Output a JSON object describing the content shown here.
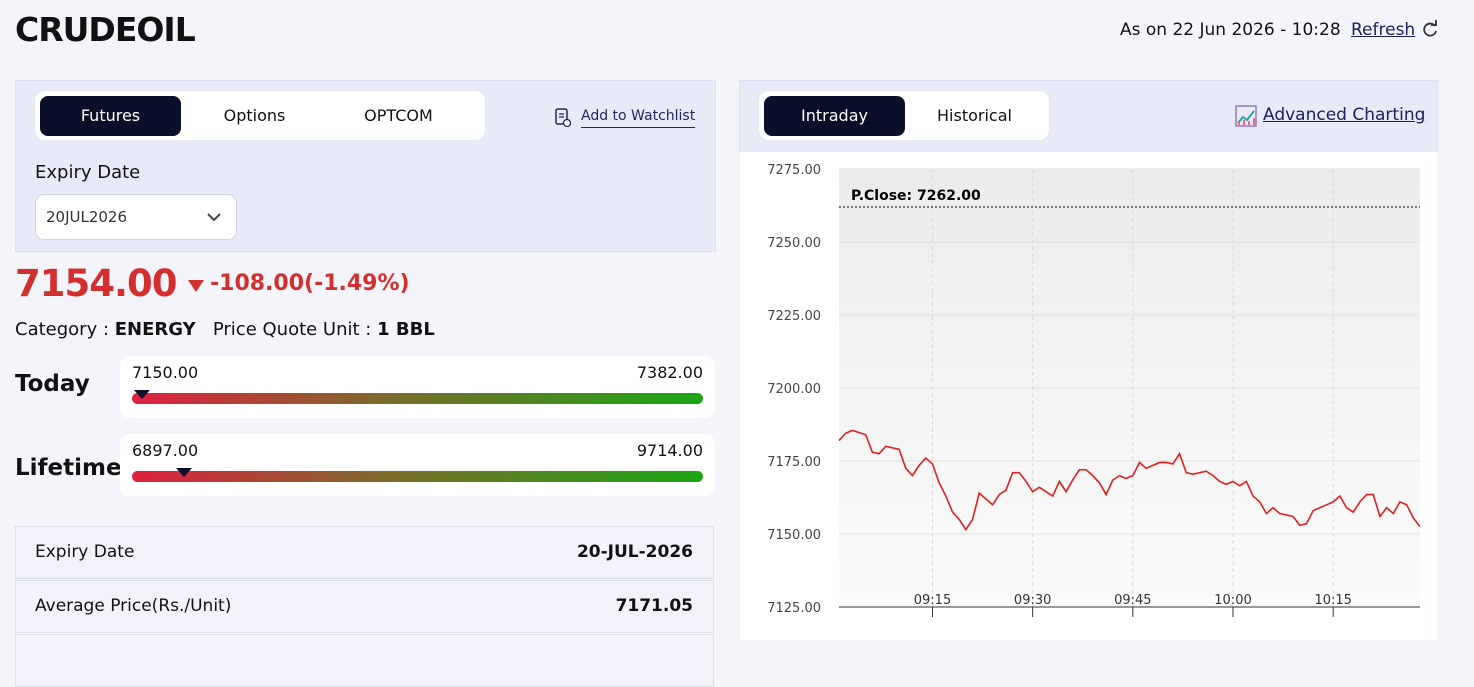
{
  "header": {
    "title": "CRUDEOIL",
    "as_on": "As on 22 Jun 2026 - 10:28",
    "refresh": "Refresh"
  },
  "tabs": [
    "Futures",
    "Options",
    "OPTCOM"
  ],
  "active_tab": 0,
  "watchlist": "Add to Watchlist",
  "expiry": {
    "label": "Expiry Date",
    "value": "20JUL2026"
  },
  "price": "7154.00",
  "change": "-108.00(-1.49%)",
  "category": {
    "label": "Category :",
    "value": "ENERGY",
    "unit_label": "Price Quote Unit :",
    "unit": "1 BBL"
  },
  "ranges": [
    {
      "label": "Today",
      "low": "7150.00",
      "high": "7382.00"
    },
    {
      "label": "Lifetime",
      "low": "6897.00",
      "high": "9714.00"
    }
  ],
  "table": {
    "rows": [
      [
        "Expiry Date",
        "20-JUL-2026"
      ],
      [
        "Average Price(Rs./Unit)",
        "7171.05"
      ]
    ]
  },
  "chart_tabs": [
    "Intraday",
    "Historical"
  ],
  "chart_active_tab": 0,
  "advanced_charting": "Advanced Charting",
  "chart_data": {
    "type": "line",
    "color": "#e02020",
    "x": [
      "09:01",
      "09:02",
      "09:03",
      "09:05",
      "09:06",
      "09:07",
      "09:08",
      "09:10",
      "09:11",
      "09:12",
      "09:13",
      "09:14",
      "09:15",
      "09:16",
      "09:17",
      "09:18",
      "09:19",
      "09:20",
      "09:21",
      "09:22",
      "09:23",
      "09:24",
      "09:25",
      "09:26",
      "09:27",
      "09:28",
      "09:29",
      "09:30",
      "09:31",
      "09:33",
      "09:34",
      "09:35",
      "09:36",
      "09:37",
      "09:38",
      "09:39",
      "09:40",
      "09:41",
      "09:42",
      "09:43",
      "09:44",
      "09:45",
      "09:46",
      "09:47",
      "09:49",
      "09:50",
      "09:51",
      "09:52",
      "09:53",
      "09:54",
      "09:56",
      "09:57",
      "09:58",
      "09:59",
      "10:00",
      "10:01",
      "10:02",
      "10:03",
      "10:04",
      "10:05",
      "10:06",
      "10:07",
      "10:09",
      "10:10",
      "10:11",
      "10:12",
      "10:13",
      "10:14",
      "10:15",
      "10:16",
      "10:17",
      "10:18",
      "10:19",
      "10:20",
      "10:21",
      "10:22",
      "10:23",
      "10:24",
      "10:25",
      "10:26",
      "10:27",
      "10:28"
    ],
    "values": [
      7182,
      7184.5,
      7185.5,
      7184,
      7178,
      7177.5,
      7180,
      7179,
      7172.5,
      7170,
      7173.5,
      7176,
      7174,
      7167.5,
      7163,
      7157.5,
      7155,
      7151.5,
      7155,
      7164,
      7162,
      7160,
      7163.5,
      7165,
      7171,
      7171,
      7168,
      7164.5,
      7166,
      7163,
      7168,
      7164.5,
      7168.5,
      7172,
      7172,
      7170,
      7167.5,
      7163.5,
      7168.5,
      7170,
      7169,
      7170,
      7174.5,
      7172.5,
      7174.5,
      7174.5,
      7174,
      7177.5,
      7171,
      7170.5,
      7171.5,
      7170,
      7168,
      7167,
      7168,
      7166.5,
      7168,
      7163,
      7161,
      7157,
      7159,
      7157,
      7156,
      7153,
      7153.5,
      7158,
      7159,
      7160,
      7161,
      7163,
      7159,
      7157.5,
      7161,
      7163.5,
      7163.5,
      7156,
      7159,
      7157,
      7161,
      7160,
      7155.5,
      7152.5
    ],
    "xlim": [
      "09:01",
      "10:28"
    ],
    "xticks": [
      "09:15",
      "09:30",
      "09:45",
      "10:00",
      "10:15"
    ],
    "ylim": [
      7125,
      7275
    ],
    "yticks": [
      {
        "value": 7125,
        "label": "7125.00"
      },
      {
        "value": 7150,
        "label": "7150.00"
      },
      {
        "value": 7175,
        "label": "7175.00"
      },
      {
        "value": 7200,
        "label": "7200.00"
      },
      {
        "value": 7225,
        "label": "7225.00"
      },
      {
        "value": 7250,
        "label": "7250.00"
      },
      {
        "value": 7275,
        "label": "7275.00"
      }
    ],
    "reference": {
      "value": 7262,
      "label": "P.Close: 7262.00"
    },
    "grid": true
  }
}
